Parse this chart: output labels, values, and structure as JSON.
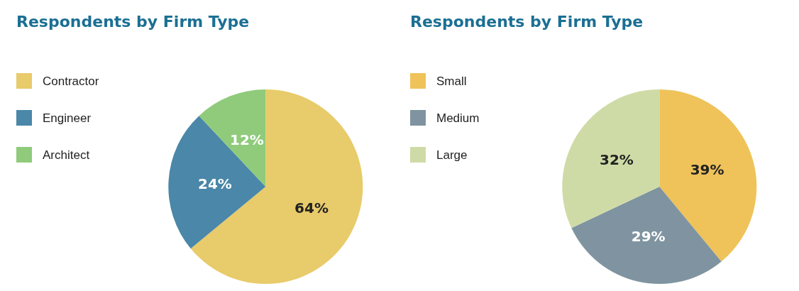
{
  "chart_data": [
    {
      "type": "pie",
      "title": "Respondents by Firm Type",
      "categories": [
        "Contractor",
        "Engineer",
        "Architect"
      ],
      "values": [
        64,
        24,
        12
      ],
      "value_labels": [
        "64%",
        "24%",
        "12%"
      ],
      "colors": [
        "#e8cb6a",
        "#4a87a8",
        "#8fcb7b"
      ],
      "legend": "left"
    },
    {
      "type": "pie",
      "title": "Respondents by Firm Type",
      "categories": [
        "Small",
        "Medium",
        "Large"
      ],
      "values": [
        39,
        29,
        32
      ],
      "value_labels": [
        "39%",
        "29%",
        "32%"
      ],
      "colors": [
        "#efc35a",
        "#7f94a0",
        "#cfdba6"
      ],
      "legend": "left"
    }
  ]
}
